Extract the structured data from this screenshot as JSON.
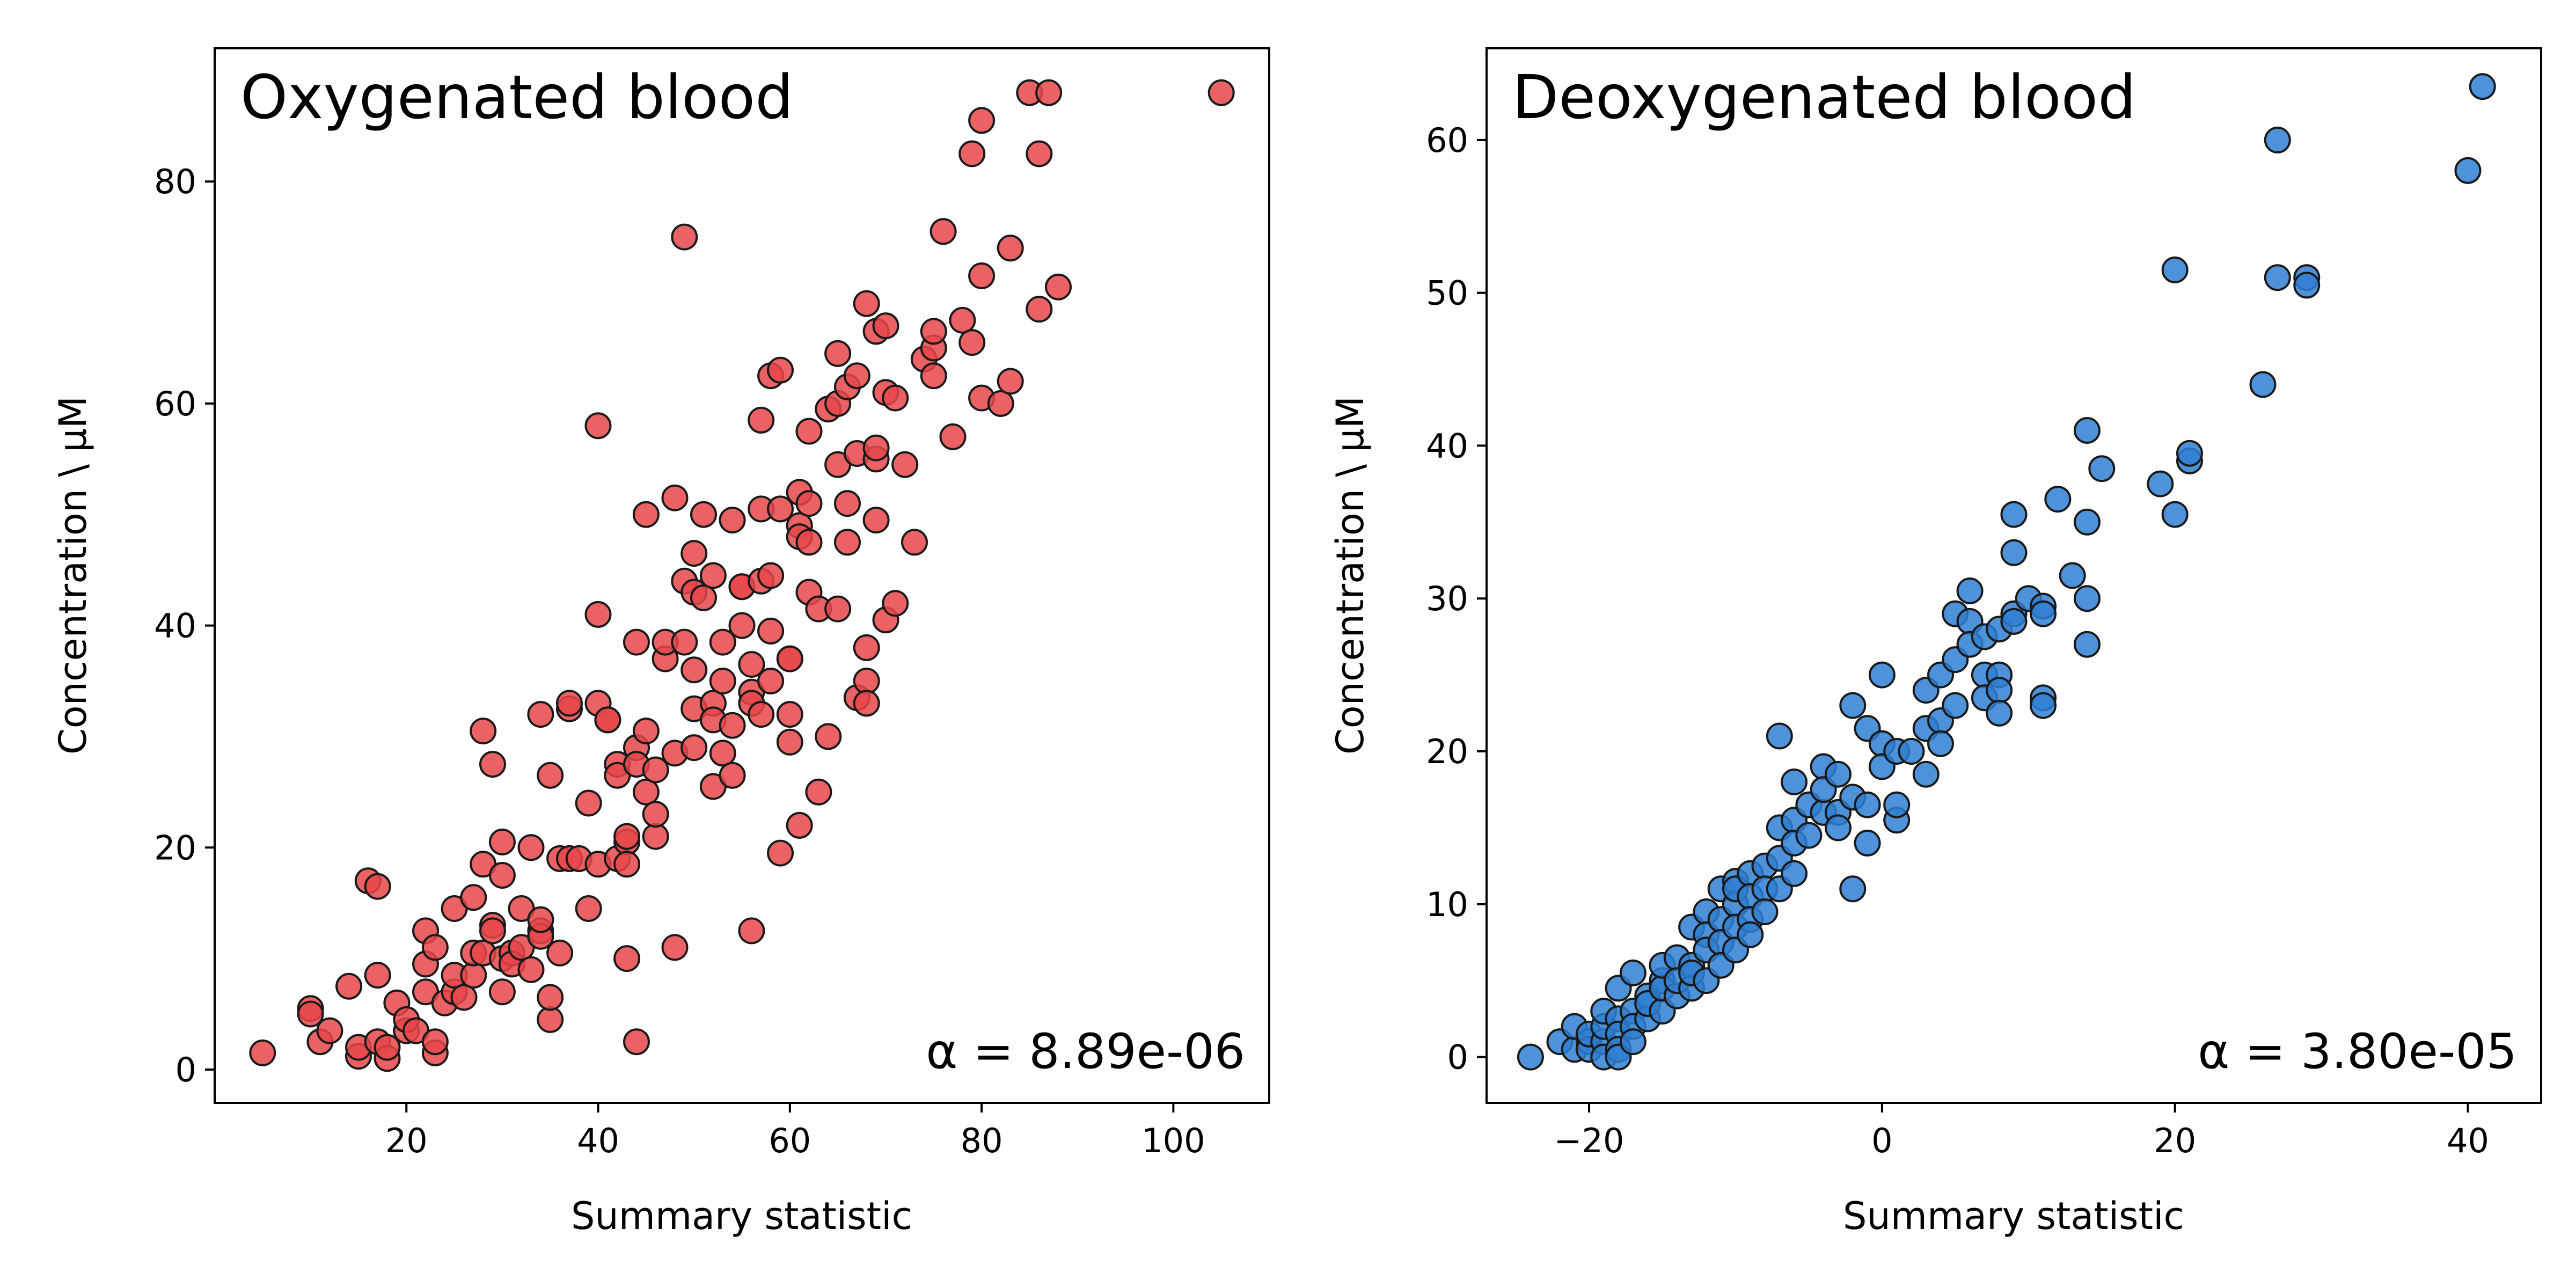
{
  "figure": {
    "panels": [
      {
        "title": "Oxygenated blood",
        "xlabel": "Summary statistic",
        "ylabel": "Concentration \\ μM",
        "annotation": "α = 8.89e-06",
        "color": "#e8474a"
      },
      {
        "title": "Deoxygenated blood",
        "xlabel": "Summary statistic",
        "ylabel": "Concentration \\ μM",
        "annotation": "α = 3.80e-05",
        "color": "#2f7fd2"
      }
    ]
  },
  "chart_data": [
    {
      "type": "scatter",
      "title": "Oxygenated blood",
      "xlabel": "Summary statistic",
      "ylabel": "Concentration \\ μM",
      "annotation": "α = 8.89e-06",
      "xlim": [
        0,
        110
      ],
      "ylim": [
        -3,
        92
      ],
      "xticks": [
        20,
        40,
        60,
        80,
        100
      ],
      "yticks": [
        0,
        20,
        40,
        60,
        80
      ],
      "grid": false,
      "marker_color": "#e8474a",
      "points": [
        [
          5,
          1.5
        ],
        [
          10,
          5.5
        ],
        [
          10,
          5
        ],
        [
          11,
          2.5
        ],
        [
          12,
          3.5
        ],
        [
          14,
          7.5
        ],
        [
          15,
          1.2
        ],
        [
          15,
          2
        ],
        [
          16,
          17
        ],
        [
          17,
          16.5
        ],
        [
          17,
          2.5
        ],
        [
          17,
          8.5
        ],
        [
          18,
          1
        ],
        [
          18,
          2
        ],
        [
          19,
          6
        ],
        [
          20,
          3.5
        ],
        [
          20,
          4.5
        ],
        [
          21,
          3.5
        ],
        [
          22,
          12.5
        ],
        [
          22,
          9.5
        ],
        [
          22,
          7
        ],
        [
          23,
          11
        ],
        [
          23,
          1.5
        ],
        [
          23,
          2.5
        ],
        [
          24,
          6
        ],
        [
          25,
          14.5
        ],
        [
          25,
          7
        ],
        [
          25,
          8.5
        ],
        [
          26,
          6.5
        ],
        [
          27,
          8.5
        ],
        [
          27,
          15.5
        ],
        [
          27,
          10.5
        ],
        [
          28,
          30.5
        ],
        [
          28,
          18.5
        ],
        [
          28,
          10.5
        ],
        [
          29,
          13
        ],
        [
          29,
          27.5
        ],
        [
          29,
          12.5
        ],
        [
          30,
          20.5
        ],
        [
          30,
          17.5
        ],
        [
          30,
          10
        ],
        [
          30,
          7
        ],
        [
          31,
          10.5
        ],
        [
          31,
          9.5
        ],
        [
          32,
          14.5
        ],
        [
          32,
          11
        ],
        [
          33,
          9
        ],
        [
          33,
          20
        ],
        [
          34,
          32
        ],
        [
          34,
          12.5
        ],
        [
          34,
          12
        ],
        [
          34,
          13.5
        ],
        [
          35,
          26.5
        ],
        [
          35,
          4.5
        ],
        [
          35,
          6.5
        ],
        [
          36,
          10.5
        ],
        [
          36,
          19
        ],
        [
          37,
          19
        ],
        [
          37,
          32.5
        ],
        [
          37,
          33
        ],
        [
          38,
          19
        ],
        [
          39,
          24
        ],
        [
          39,
          14.5
        ],
        [
          40,
          41
        ],
        [
          40,
          33
        ],
        [
          40,
          58
        ],
        [
          40,
          18.5
        ],
        [
          41,
          31.5
        ],
        [
          41,
          31.5
        ],
        [
          42,
          27.5
        ],
        [
          42,
          19
        ],
        [
          42,
          26.5
        ],
        [
          43,
          20.5
        ],
        [
          43,
          18.5
        ],
        [
          43,
          21
        ],
        [
          43,
          10
        ],
        [
          44,
          2.5
        ],
        [
          44,
          29
        ],
        [
          44,
          38.5
        ],
        [
          44,
          27.5
        ],
        [
          45,
          30.5
        ],
        [
          45,
          25
        ],
        [
          45,
          50
        ],
        [
          46,
          27
        ],
        [
          46,
          21
        ],
        [
          46,
          23
        ],
        [
          47,
          37
        ],
        [
          47,
          38.5
        ],
        [
          48,
          28.5
        ],
        [
          48,
          11
        ],
        [
          48,
          51.5
        ],
        [
          49,
          75
        ],
        [
          49,
          44
        ],
        [
          49,
          38.5
        ],
        [
          50,
          29
        ],
        [
          50,
          32.5
        ],
        [
          50,
          43
        ],
        [
          50,
          46.5
        ],
        [
          50,
          36
        ],
        [
          51,
          50
        ],
        [
          51,
          42.5
        ],
        [
          52,
          33
        ],
        [
          52,
          31.5
        ],
        [
          52,
          44.5
        ],
        [
          52,
          25.5
        ],
        [
          53,
          38.5
        ],
        [
          53,
          28.5
        ],
        [
          53,
          35
        ],
        [
          54,
          31
        ],
        [
          54,
          26.5
        ],
        [
          54,
          49.5
        ],
        [
          55,
          43.5
        ],
        [
          55,
          43.5
        ],
        [
          55,
          40
        ],
        [
          56,
          12.5
        ],
        [
          56,
          34
        ],
        [
          56,
          33
        ],
        [
          56,
          36.5
        ],
        [
          57,
          44
        ],
        [
          57,
          50.5
        ],
        [
          57,
          32
        ],
        [
          57,
          58.5
        ],
        [
          58,
          62.5
        ],
        [
          58,
          35
        ],
        [
          58,
          39.5
        ],
        [
          58,
          44.5
        ],
        [
          59,
          19.5
        ],
        [
          59,
          63
        ],
        [
          59,
          50.5
        ],
        [
          60,
          32
        ],
        [
          60,
          37
        ],
        [
          60,
          29.5
        ],
        [
          60,
          37
        ],
        [
          61,
          49
        ],
        [
          61,
          48
        ],
        [
          61,
          22
        ],
        [
          61,
          52
        ],
        [
          62,
          57.5
        ],
        [
          62,
          51
        ],
        [
          62,
          43
        ],
        [
          62,
          47.5
        ],
        [
          63,
          41.5
        ],
        [
          63,
          25
        ],
        [
          64,
          59.5
        ],
        [
          64,
          30
        ],
        [
          65,
          60
        ],
        [
          65,
          41.5
        ],
        [
          65,
          54.5
        ],
        [
          65,
          64.5
        ],
        [
          66,
          61.5
        ],
        [
          66,
          47.5
        ],
        [
          66,
          51
        ],
        [
          67,
          33.5
        ],
        [
          67,
          62.5
        ],
        [
          67,
          55.5
        ],
        [
          68,
          69
        ],
        [
          68,
          35
        ],
        [
          68,
          33
        ],
        [
          68,
          38
        ],
        [
          69,
          55
        ],
        [
          69,
          56
        ],
        [
          69,
          49.5
        ],
        [
          69,
          66.5
        ],
        [
          70,
          40.5
        ],
        [
          70,
          61
        ],
        [
          70,
          67
        ],
        [
          71,
          60.5
        ],
        [
          71,
          42
        ],
        [
          72,
          54.5
        ],
        [
          73,
          47.5
        ],
        [
          74,
          64
        ],
        [
          75,
          65
        ],
        [
          75,
          62.5
        ],
        [
          75,
          66.5
        ],
        [
          76,
          75.5
        ],
        [
          77,
          57
        ],
        [
          78,
          67.5
        ],
        [
          79,
          82.5
        ],
        [
          79,
          65.5
        ],
        [
          80,
          85.5
        ],
        [
          80,
          71.5
        ],
        [
          80,
          60.5
        ],
        [
          82,
          60
        ],
        [
          83,
          62
        ],
        [
          83,
          74
        ],
        [
          85,
          88
        ],
        [
          86,
          82.5
        ],
        [
          86,
          68.5
        ],
        [
          87,
          88
        ],
        [
          88,
          70.5
        ],
        [
          105,
          88
        ]
      ]
    },
    {
      "type": "scatter",
      "title": "Deoxygenated blood",
      "xlabel": "Summary statistic",
      "ylabel": "Concentration \\ μM",
      "annotation": "α = 3.80e-05",
      "xlim": [
        -27,
        45
      ],
      "ylim": [
        -3,
        66
      ],
      "xticks": [
        -20,
        0,
        20,
        40
      ],
      "yticks": [
        0,
        10,
        20,
        30,
        40,
        50,
        60
      ],
      "grid": false,
      "marker_color": "#2f7fd2",
      "points": [
        [
          -24,
          0
        ],
        [
          -22,
          1
        ],
        [
          -21,
          0.5
        ],
        [
          -21,
          2
        ],
        [
          -20,
          1
        ],
        [
          -20,
          0.5
        ],
        [
          -20,
          1.5
        ],
        [
          -19,
          1
        ],
        [
          -19,
          0
        ],
        [
          -19,
          2
        ],
        [
          -19,
          3
        ],
        [
          -18,
          4.5
        ],
        [
          -18,
          2.5
        ],
        [
          -18,
          1.5
        ],
        [
          -18,
          0.5
        ],
        [
          -18,
          0
        ],
        [
          -17,
          5.5
        ],
        [
          -17,
          3
        ],
        [
          -17,
          2
        ],
        [
          -17,
          1
        ],
        [
          -16,
          4
        ],
        [
          -16,
          2.5
        ],
        [
          -16,
          3.5
        ],
        [
          -15,
          5
        ],
        [
          -15,
          3
        ],
        [
          -15,
          4.5
        ],
        [
          -15,
          6
        ],
        [
          -14,
          6.5
        ],
        [
          -14,
          4
        ],
        [
          -14,
          5
        ],
        [
          -13,
          8.5
        ],
        [
          -13,
          6
        ],
        [
          -13,
          4.5
        ],
        [
          -13,
          5.5
        ],
        [
          -12,
          9.5
        ],
        [
          -12,
          8
        ],
        [
          -12,
          7
        ],
        [
          -12,
          5
        ],
        [
          -11,
          11
        ],
        [
          -11,
          9
        ],
        [
          -11,
          7.5
        ],
        [
          -11,
          6
        ],
        [
          -10,
          11.5
        ],
        [
          -10,
          10
        ],
        [
          -10,
          8.5
        ],
        [
          -10,
          7
        ],
        [
          -10,
          11
        ],
        [
          -9,
          12
        ],
        [
          -9,
          10.5
        ],
        [
          -9,
          9
        ],
        [
          -9,
          8
        ],
        [
          -8,
          12.5
        ],
        [
          -8,
          11
        ],
        [
          -8,
          9.5
        ],
        [
          -7,
          21
        ],
        [
          -7,
          15
        ],
        [
          -7,
          13
        ],
        [
          -7,
          11
        ],
        [
          -6,
          18
        ],
        [
          -6,
          15.5
        ],
        [
          -6,
          14
        ],
        [
          -6,
          12
        ],
        [
          -5,
          16.5
        ],
        [
          -5,
          14.5
        ],
        [
          -4,
          19
        ],
        [
          -4,
          16
        ],
        [
          -4,
          17.5
        ],
        [
          -3,
          18.5
        ],
        [
          -3,
          16
        ],
        [
          -3,
          15
        ],
        [
          -2,
          23
        ],
        [
          -2,
          11
        ],
        [
          -2,
          17
        ],
        [
          -1,
          21.5
        ],
        [
          -1,
          14
        ],
        [
          -1,
          16.5
        ],
        [
          0,
          20.5
        ],
        [
          0,
          19
        ],
        [
          0,
          25
        ],
        [
          1,
          20
        ],
        [
          1,
          15.5
        ],
        [
          1,
          16.5
        ],
        [
          2,
          20
        ],
        [
          3,
          21.5
        ],
        [
          3,
          18.5
        ],
        [
          3,
          24
        ],
        [
          4,
          22
        ],
        [
          4,
          20.5
        ],
        [
          4,
          25
        ],
        [
          5,
          26
        ],
        [
          5,
          29
        ],
        [
          5,
          23
        ],
        [
          6,
          28.5
        ],
        [
          6,
          30.5
        ],
        [
          6,
          27
        ],
        [
          7,
          27.5
        ],
        [
          7,
          25
        ],
        [
          7,
          23.5
        ],
        [
          8,
          28
        ],
        [
          8,
          25
        ],
        [
          8,
          24
        ],
        [
          8,
          22.5
        ],
        [
          9,
          35.5
        ],
        [
          9,
          33
        ],
        [
          9,
          29
        ],
        [
          9,
          28.5
        ],
        [
          10,
          30
        ],
        [
          11,
          29.5
        ],
        [
          11,
          23.5
        ],
        [
          11,
          23
        ],
        [
          11,
          29
        ],
        [
          12,
          36.5
        ],
        [
          13,
          31.5
        ],
        [
          14,
          35
        ],
        [
          14,
          41
        ],
        [
          14,
          27
        ],
        [
          14,
          30
        ],
        [
          15,
          38.5
        ],
        [
          19,
          37.5
        ],
        [
          20,
          35.5
        ],
        [
          20,
          51.5
        ],
        [
          21,
          39
        ],
        [
          21,
          39.5
        ],
        [
          26,
          44
        ],
        [
          27,
          60
        ],
        [
          27,
          51
        ],
        [
          29,
          51
        ],
        [
          29,
          50.5
        ],
        [
          40,
          58
        ],
        [
          41,
          63.5
        ]
      ]
    }
  ]
}
